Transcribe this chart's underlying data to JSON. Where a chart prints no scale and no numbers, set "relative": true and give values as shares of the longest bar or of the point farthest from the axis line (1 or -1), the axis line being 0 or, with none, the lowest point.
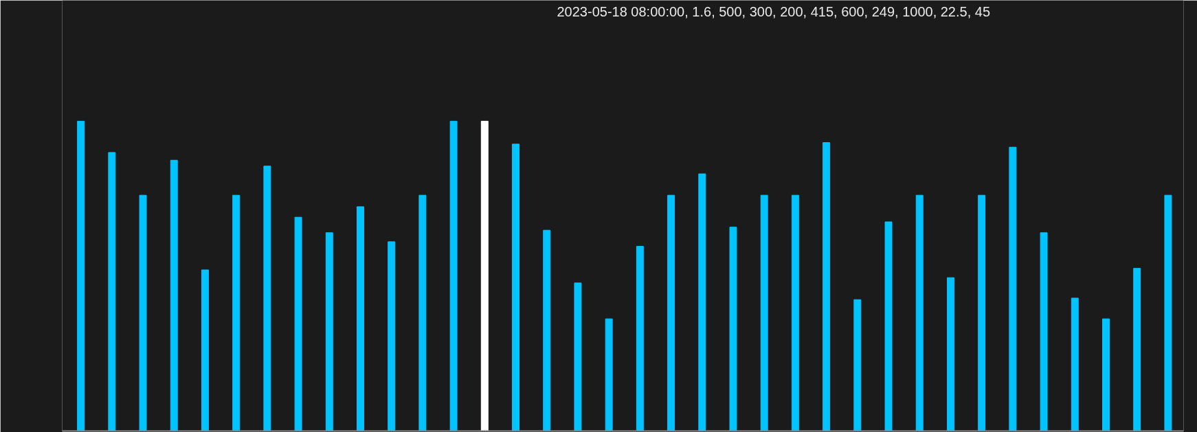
{
  "chart_data": {
    "type": "bar",
    "relative": true,
    "categories": [
      null,
      null,
      null,
      null,
      null,
      null,
      null,
      null,
      null,
      null,
      null,
      null,
      null,
      null,
      null,
      null,
      null,
      null,
      null,
      null,
      null,
      null,
      null,
      null,
      null,
      null,
      null,
      null,
      null,
      null,
      null,
      null,
      null,
      null,
      null,
      null
    ],
    "values": [
      1.0,
      0.899,
      0.761,
      0.874,
      0.52,
      0.761,
      0.855,
      0.69,
      0.64,
      0.724,
      0.611,
      0.761,
      1.0,
      1.0,
      0.926,
      0.648,
      0.478,
      0.362,
      0.596,
      0.761,
      0.83,
      0.658,
      0.761,
      0.761,
      0.931,
      0.424,
      0.675,
      0.761,
      0.495,
      0.761,
      0.916,
      0.64,
      0.429,
      0.362,
      0.525,
      0.761
    ],
    "colors": [
      "#00c3ff",
      "#00c3ff",
      "#00c3ff",
      "#00c3ff",
      "#00c3ff",
      "#00c3ff",
      "#00c3ff",
      "#00c3ff",
      "#00c3ff",
      "#00c3ff",
      "#00c3ff",
      "#00c3ff",
      "#00c3ff",
      "#ffffff",
      "#00c3ff",
      "#00c3ff",
      "#00c3ff",
      "#00c3ff",
      "#00c3ff",
      "#00c3ff",
      "#00c3ff",
      "#00c3ff",
      "#00c3ff",
      "#00c3ff",
      "#00c3ff",
      "#00c3ff",
      "#00c3ff",
      "#00c3ff",
      "#00c3ff",
      "#00c3ff",
      "#00c3ff",
      "#00c3ff",
      "#00c3ff",
      "#00c3ff",
      "#00c3ff",
      "#00c3ff"
    ],
    "annotations": [
      "2023-05-18 08:00:00, 1.6, 500, 300, 200, 415, 600, 249, 1000, 22.5, 45"
    ],
    "grid": false
  }
}
